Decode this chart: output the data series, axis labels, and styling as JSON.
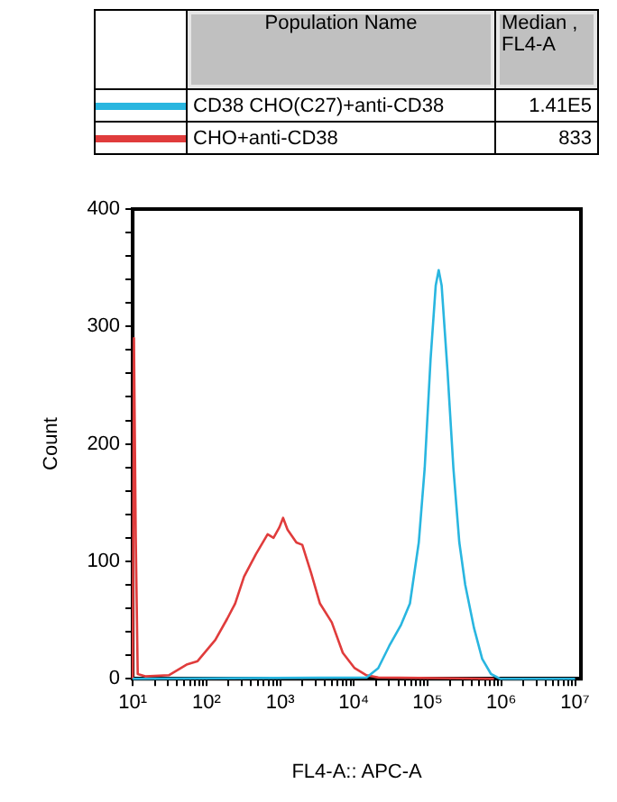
{
  "chart_data": {
    "type": "line",
    "xlabel": "FL4-A:: APC-A",
    "ylabel": "Count",
    "legend": "top",
    "legend_title": "Population Name",
    "annotations": [
      "Median , FL4-A",
      "1.41E5",
      "833"
    ],
    "log": "x",
    "grid": false,
    "xlim": [
      10,
      12000000
    ],
    "ylim": [
      0,
      400
    ],
    "xticks": [
      {
        "value": 10,
        "label": "10¹"
      },
      {
        "value": 20,
        "label": null
      },
      {
        "value": 30,
        "label": null
      },
      {
        "value": 40,
        "label": null
      },
      {
        "value": 50,
        "label": null
      },
      {
        "value": 60,
        "label": null
      },
      {
        "value": 70,
        "label": null
      },
      {
        "value": 80,
        "label": null
      },
      {
        "value": 90,
        "label": null
      },
      {
        "value": 100,
        "label": "10²"
      },
      {
        "value": 200,
        "label": null
      },
      {
        "value": 300,
        "label": null
      },
      {
        "value": 400,
        "label": null
      },
      {
        "value": 500,
        "label": null
      },
      {
        "value": 600,
        "label": null
      },
      {
        "value": 700,
        "label": null
      },
      {
        "value": 800,
        "label": null
      },
      {
        "value": 900,
        "label": null
      },
      {
        "value": 1000,
        "label": "10³"
      },
      {
        "value": 2000,
        "label": null
      },
      {
        "value": 3000,
        "label": null
      },
      {
        "value": 4000,
        "label": null
      },
      {
        "value": 5000,
        "label": null
      },
      {
        "value": 6000,
        "label": null
      },
      {
        "value": 7000,
        "label": null
      },
      {
        "value": 8000,
        "label": null
      },
      {
        "value": 9000,
        "label": null
      },
      {
        "value": 10000,
        "label": "10⁴"
      },
      {
        "value": 20000,
        "label": null
      },
      {
        "value": 30000,
        "label": null
      },
      {
        "value": 40000,
        "label": null
      },
      {
        "value": 50000,
        "label": null
      },
      {
        "value": 60000,
        "label": null
      },
      {
        "value": 70000,
        "label": null
      },
      {
        "value": 80000,
        "label": null
      },
      {
        "value": 90000,
        "label": null
      },
      {
        "value": 100000,
        "label": "10⁵"
      },
      {
        "value": 200000,
        "label": null
      },
      {
        "value": 300000,
        "label": null
      },
      {
        "value": 400000,
        "label": null
      },
      {
        "value": 500000,
        "label": null
      },
      {
        "value": 600000,
        "label": null
      },
      {
        "value": 700000,
        "label": null
      },
      {
        "value": 800000,
        "label": null
      },
      {
        "value": 900000,
        "label": null
      },
      {
        "value": 1000000,
        "label": "10⁶"
      },
      {
        "value": 2000000,
        "label": null
      },
      {
        "value": 3000000,
        "label": null
      },
      {
        "value": 4000000,
        "label": null
      },
      {
        "value": 5000000,
        "label": null
      },
      {
        "value": 6000000,
        "label": null
      },
      {
        "value": 7000000,
        "label": null
      },
      {
        "value": 8000000,
        "label": null
      },
      {
        "value": 9000000,
        "label": null
      },
      {
        "value": 10000000,
        "label": "10⁷"
      }
    ],
    "yticks": [
      0,
      {
        "value": 20,
        "label": null
      },
      {
        "value": 40,
        "label": null
      },
      {
        "value": 60,
        "label": null
      },
      {
        "value": 80,
        "label": null
      },
      100,
      {
        "value": 120,
        "label": null
      },
      {
        "value": 140,
        "label": null
      },
      {
        "value": 160,
        "label": null
      },
      {
        "value": 180,
        "label": null
      },
      200,
      {
        "value": 220,
        "label": null
      },
      {
        "value": 240,
        "label": null
      },
      {
        "value": 260,
        "label": null
      },
      {
        "value": 280,
        "label": null
      },
      300,
      {
        "value": 320,
        "label": null
      },
      {
        "value": 340,
        "label": null
      },
      {
        "value": 360,
        "label": null
      },
      {
        "value": 380,
        "label": null
      },
      400
    ],
    "series": [
      {
        "name": "CD38 CHO(C27)+anti-CD38",
        "color": "#29b6e0",
        "x": [
          10,
          14791,
          21380,
          30200,
          43652,
          57544,
          75858,
          91201,
          109648,
          128825,
          141254,
          154882,
          186209,
          223872,
          269153,
          323594,
          426580,
          549541,
          724436,
          954993,
          10000000
        ],
        "values": [
          0,
          1,
          9,
          28,
          46,
          64,
          116,
          179,
          272,
          335,
          348,
          335,
          262,
          179,
          116,
          80,
          43,
          17,
          4,
          0,
          0
        ]
      },
      {
        "name": "CHO+anti-CD38",
        "color": "#e03c3c",
        "x": [
          10,
          10.4,
          11,
          11.7,
          14.8,
          30.9,
          53.7,
          75.9,
          132,
          191,
          245,
          324,
          468,
          676,
          813,
          977,
          1096,
          1259,
          1660,
          1995,
          2630,
          3467,
          5012,
          7079,
          10233,
          14791,
          21380,
          794328
        ],
        "values": [
          0,
          290,
          121,
          4,
          2,
          3,
          12,
          15,
          33,
          51,
          64,
          87,
          106,
          123,
          120,
          129,
          137,
          127,
          116,
          114,
          90,
          64,
          48,
          22,
          9,
          3,
          1,
          0
        ]
      }
    ]
  }
}
